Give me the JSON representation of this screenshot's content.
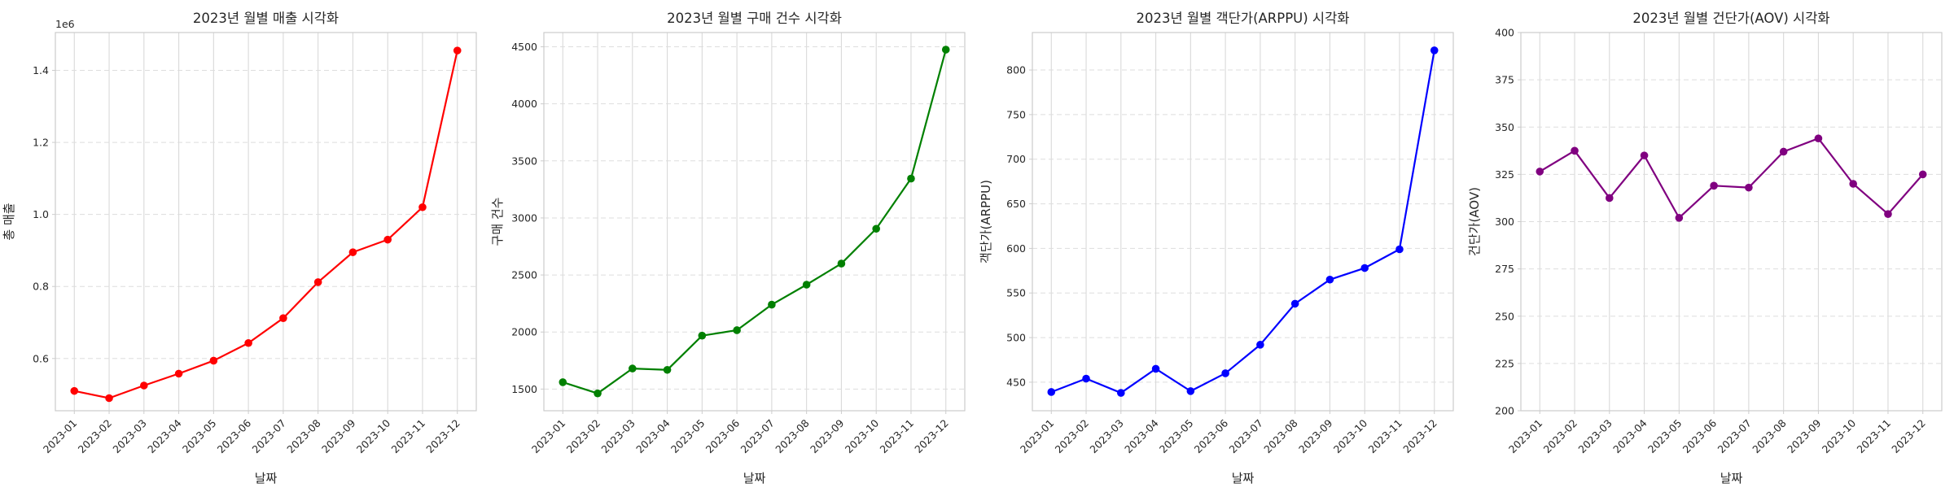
{
  "chart_data": [
    {
      "type": "line",
      "title": "2023년 월별 매출 시각화",
      "xlabel": "날짜",
      "ylabel": "총 매출",
      "y_offset_label": "1e6",
      "color": "#ff0000",
      "categories": [
        "2023-01",
        "2023-02",
        "2023-03",
        "2023-04",
        "2023-05",
        "2023-06",
        "2023-07",
        "2023-08",
        "2023-09",
        "2023-10",
        "2023-11",
        "2023-12"
      ],
      "values": [
        0.51,
        0.49,
        0.525,
        0.558,
        0.594,
        0.643,
        0.712,
        0.812,
        0.895,
        0.93,
        1.02,
        1.455
      ],
      "ylim": [
        0.455,
        1.505
      ],
      "yticks": [
        0.6,
        0.8,
        1.0,
        1.2,
        1.4
      ],
      "ytick_labels": [
        "0.6",
        "0.8",
        "1.0",
        "1.2",
        "1.4"
      ],
      "grid": true
    },
    {
      "type": "line",
      "title": "2023년 월별 구매 건수 시각화",
      "xlabel": "날짜",
      "ylabel": "구매 건수",
      "color": "#008000",
      "categories": [
        "2023-01",
        "2023-02",
        "2023-03",
        "2023-04",
        "2023-05",
        "2023-06",
        "2023-07",
        "2023-08",
        "2023-09",
        "2023-10",
        "2023-11",
        "2023-12"
      ],
      "values": [
        1560,
        1462,
        1680,
        1668,
        1968,
        2016,
        2240,
        2415,
        2600,
        2905,
        3345,
        4475
      ],
      "ylim": [
        1310,
        4625
      ],
      "yticks": [
        1500,
        2000,
        2500,
        3000,
        3500,
        4000,
        4500
      ],
      "ytick_labels": [
        "1500",
        "2000",
        "2500",
        "3000",
        "3500",
        "4000",
        "4500"
      ],
      "grid": true
    },
    {
      "type": "line",
      "title": "2023년 월별 객단가(ARPPU) 시각화",
      "xlabel": "날짜",
      "ylabel": "객단가(ARPPU)",
      "color": "#0000ff",
      "categories": [
        "2023-01",
        "2023-02",
        "2023-03",
        "2023-04",
        "2023-05",
        "2023-06",
        "2023-07",
        "2023-08",
        "2023-09",
        "2023-10",
        "2023-11",
        "2023-12"
      ],
      "values": [
        439,
        454,
        438,
        465,
        440,
        460,
        492,
        538,
        565,
        578,
        599,
        822
      ],
      "ylim": [
        418,
        842
      ],
      "yticks": [
        450,
        500,
        550,
        600,
        650,
        700,
        750,
        800
      ],
      "ytick_labels": [
        "450",
        "500",
        "550",
        "600",
        "650",
        "700",
        "750",
        "800"
      ],
      "grid": true
    },
    {
      "type": "line",
      "title": "2023년 월별 건단가(AOV) 시각화",
      "xlabel": "날짜",
      "ylabel": "건단가(AOV)",
      "color": "#800080",
      "categories": [
        "2023-01",
        "2023-02",
        "2023-03",
        "2023-04",
        "2023-05",
        "2023-06",
        "2023-07",
        "2023-08",
        "2023-09",
        "2023-10",
        "2023-11",
        "2023-12"
      ],
      "values": [
        326.5,
        337.5,
        312.5,
        335,
        302,
        319,
        318,
        337,
        344,
        320,
        304,
        325
      ],
      "ylim": [
        200,
        400
      ],
      "yticks": [
        200,
        225,
        250,
        275,
        300,
        325,
        350,
        375,
        400
      ],
      "ytick_labels": [
        "200",
        "225",
        "250",
        "275",
        "300",
        "325",
        "350",
        "375",
        "400"
      ],
      "grid": true
    }
  ]
}
